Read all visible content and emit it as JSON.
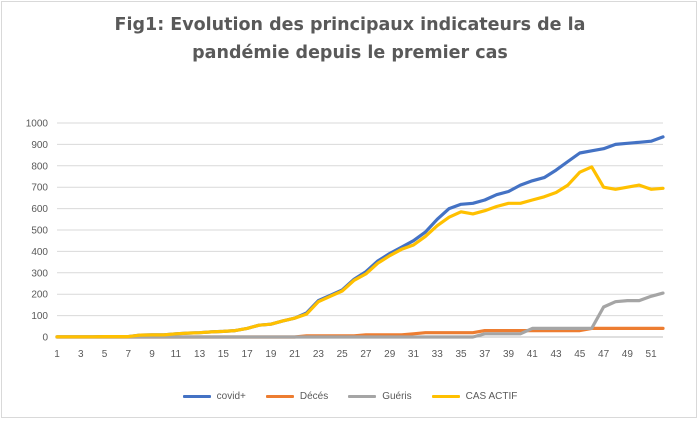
{
  "chart_data": {
    "type": "line",
    "title_line1": "Fig1: Evolution des principaux indicateurs de la",
    "title_line2": "pandémie depuis le premier cas",
    "xlabel": "",
    "ylabel": "",
    "ylim": [
      0,
      1000
    ],
    "yticks": [
      0,
      100,
      200,
      300,
      400,
      500,
      600,
      700,
      800,
      900,
      1000
    ],
    "x": [
      1,
      2,
      3,
      4,
      5,
      6,
      7,
      8,
      9,
      10,
      11,
      12,
      13,
      14,
      15,
      16,
      17,
      18,
      19,
      20,
      21,
      22,
      23,
      24,
      25,
      26,
      27,
      28,
      29,
      30,
      31,
      32,
      33,
      34,
      35,
      36,
      37,
      38,
      39,
      40,
      41,
      42,
      43,
      44,
      45,
      46,
      47,
      48,
      49,
      50,
      51,
      52
    ],
    "xticks": [
      1,
      3,
      5,
      7,
      9,
      11,
      13,
      15,
      17,
      19,
      21,
      23,
      25,
      27,
      29,
      31,
      33,
      35,
      37,
      39,
      41,
      43,
      45,
      47,
      49,
      51
    ],
    "grid": true,
    "legend_position": "bottom",
    "series": [
      {
        "name": "covid+",
        "color": "#4472c4",
        "values": [
          1,
          1,
          1,
          1,
          2,
          2,
          2,
          9,
          10,
          10,
          15,
          18,
          20,
          24,
          26,
          30,
          40,
          55,
          60,
          75,
          88,
          112,
          170,
          195,
          220,
          270,
          305,
          355,
          390,
          420,
          450,
          490,
          550,
          600,
          620,
          625,
          640,
          665,
          680,
          710,
          730,
          745,
          780,
          820,
          860,
          870,
          880,
          900,
          905,
          910,
          915,
          935
        ]
      },
      {
        "name": "Décés",
        "color": "#ed7d31",
        "values": [
          0,
          0,
          0,
          0,
          0,
          0,
          0,
          0,
          0,
          0,
          0,
          0,
          0,
          0,
          0,
          0,
          0,
          0,
          0,
          0,
          0,
          5,
          5,
          5,
          5,
          5,
          10,
          10,
          10,
          10,
          15,
          20,
          20,
          20,
          20,
          20,
          30,
          30,
          30,
          30,
          30,
          30,
          30,
          30,
          30,
          40,
          40,
          40,
          40,
          40,
          40,
          40
        ]
      },
      {
        "name": "Guéris",
        "color": "#a5a5a5",
        "values": [
          0,
          0,
          0,
          0,
          0,
          0,
          0,
          0,
          0,
          0,
          0,
          0,
          0,
          0,
          0,
          0,
          0,
          0,
          0,
          0,
          0,
          0,
          0,
          0,
          0,
          0,
          0,
          0,
          0,
          0,
          0,
          0,
          0,
          0,
          0,
          0,
          15,
          15,
          15,
          15,
          40,
          40,
          40,
          40,
          40,
          40,
          140,
          165,
          170,
          170,
          190,
          205
        ]
      },
      {
        "name": "CAS ACTIF",
        "color": "#ffc000",
        "values": [
          1,
          1,
          1,
          1,
          2,
          2,
          2,
          9,
          10,
          10,
          15,
          18,
          20,
          24,
          26,
          30,
          40,
          55,
          60,
          75,
          88,
          107,
          165,
          190,
          215,
          265,
          295,
          345,
          380,
          410,
          430,
          470,
          520,
          560,
          585,
          575,
          590,
          610,
          625,
          625,
          640,
          655,
          675,
          710,
          770,
          795,
          700,
          690,
          700,
          710,
          690,
          695
        ]
      }
    ]
  }
}
